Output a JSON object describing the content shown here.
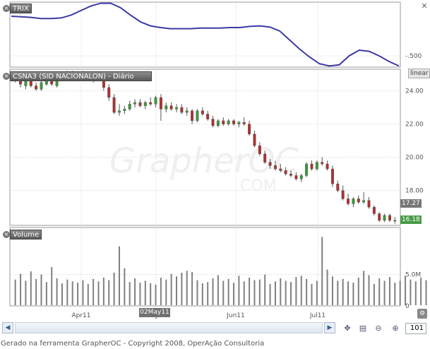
{
  "panels": {
    "trix": {
      "label": "TRIX"
    },
    "price": {
      "label": "CSNA3 (SID NACIONALON) - Diário",
      "scale_mode": "linear",
      "last_price": "17.27",
      "current_price": "16.18"
    },
    "volume": {
      "label": "Volume"
    }
  },
  "watermark": {
    "text": "GrapherOC",
    "subtext": "COM"
  },
  "crosshair_date": "02May11",
  "zoom_value": "101",
  "footer_text": "Gerado na ferramenta GrapherOC - Copyright 2008, OperAção Consultoria",
  "icons": [
    "close-icon",
    "scroll-left-icon",
    "scroll-right-icon",
    "pan-icon",
    "chart-icon",
    "zoom-out-icon",
    "zoom-in-icon",
    "settings-icon"
  ],
  "colors": {
    "trix_line": "#3a3aa8",
    "candle_up": "#3a9a3a",
    "candle_down": "#b03030",
    "volume_bar": "#808080",
    "current_price_bg": "#4a9a4a",
    "last_price_bg": "#777777"
  },
  "chart_data": [
    {
      "type": "line",
      "title": "TRIX",
      "x_tick_labels": [
        "Apr11",
        "May11",
        "Jun11",
        "Jul11"
      ],
      "y_ticks": [
        -0.5
      ],
      "ylim": [
        -0.7,
        0.45
      ],
      "values": [
        0.2,
        0.19,
        0.18,
        0.16,
        0.16,
        0.17,
        0.22,
        0.3,
        0.38,
        0.43,
        0.43,
        0.35,
        0.22,
        0.1,
        0.03,
        0.0,
        -0.02,
        -0.02,
        -0.02,
        -0.01,
        -0.01,
        -0.01,
        0.0,
        0.0,
        0.02,
        0.03,
        0.01,
        -0.06,
        -0.22,
        -0.38,
        -0.52,
        -0.64,
        -0.68,
        -0.66,
        -0.5,
        -0.4,
        -0.42,
        -0.5,
        -0.6,
        -0.68
      ]
    },
    {
      "type": "candlestick",
      "title": "CSNA3 (SID NACIONALON) - Diário",
      "x_tick_labels": [
        "Apr11",
        "May11",
        "Jun11",
        "Jul11"
      ],
      "y_ticks": [
        18.0,
        20.0,
        22.0,
        24.0
      ],
      "ylim": [
        15.9,
        25.3
      ],
      "annotations": [
        "17.27",
        "16.18"
      ],
      "candles": [
        {
          "o": 24.9,
          "h": 25.1,
          "l": 24.5,
          "c": 24.7
        },
        {
          "o": 24.6,
          "h": 24.9,
          "l": 24.2,
          "c": 24.4
        },
        {
          "o": 24.3,
          "h": 24.8,
          "l": 24.1,
          "c": 24.7
        },
        {
          "o": 24.6,
          "h": 24.9,
          "l": 24.2,
          "c": 24.3
        },
        {
          "o": 24.3,
          "h": 24.5,
          "l": 24.0,
          "c": 24.1
        },
        {
          "o": 24.1,
          "h": 24.8,
          "l": 24.0,
          "c": 24.5
        },
        {
          "o": 24.4,
          "h": 24.9,
          "l": 24.3,
          "c": 24.8
        },
        {
          "o": 24.7,
          "h": 24.9,
          "l": 24.3,
          "c": 24.4
        },
        {
          "o": 24.3,
          "h": 24.9,
          "l": 24.2,
          "c": 24.8
        },
        {
          "o": 24.8,
          "h": 25.1,
          "l": 24.6,
          "c": 24.9
        },
        {
          "o": 24.9,
          "h": 25.2,
          "l": 24.7,
          "c": 25.0
        },
        {
          "o": 25.0,
          "h": 25.2,
          "l": 24.8,
          "c": 24.9
        },
        {
          "o": 24.9,
          "h": 25.1,
          "l": 24.7,
          "c": 25.0
        },
        {
          "o": 25.0,
          "h": 25.2,
          "l": 24.8,
          "c": 24.9
        },
        {
          "o": 24.9,
          "h": 25.1,
          "l": 24.6,
          "c": 24.7
        },
        {
          "o": 24.8,
          "h": 25.0,
          "l": 24.5,
          "c": 24.9
        },
        {
          "o": 24.9,
          "h": 25.1,
          "l": 24.6,
          "c": 24.7
        },
        {
          "o": 24.7,
          "h": 24.9,
          "l": 24.0,
          "c": 24.2
        },
        {
          "o": 24.2,
          "h": 24.4,
          "l": 23.4,
          "c": 23.6
        },
        {
          "o": 23.6,
          "h": 23.8,
          "l": 22.6,
          "c": 22.7
        },
        {
          "o": 22.7,
          "h": 23.2,
          "l": 22.5,
          "c": 22.8
        },
        {
          "o": 22.8,
          "h": 23.1,
          "l": 22.6,
          "c": 22.9
        },
        {
          "o": 22.9,
          "h": 23.4,
          "l": 22.8,
          "c": 23.2
        },
        {
          "o": 23.2,
          "h": 23.5,
          "l": 23.0,
          "c": 23.3
        },
        {
          "o": 23.3,
          "h": 23.5,
          "l": 23.0,
          "c": 23.1
        },
        {
          "o": 23.1,
          "h": 23.4,
          "l": 22.9,
          "c": 23.3
        },
        {
          "o": 23.3,
          "h": 23.6,
          "l": 23.1,
          "c": 23.2
        },
        {
          "o": 23.2,
          "h": 23.7,
          "l": 23.0,
          "c": 23.6
        },
        {
          "o": 23.6,
          "h": 23.8,
          "l": 22.2,
          "c": 22.9
        },
        {
          "o": 22.9,
          "h": 23.3,
          "l": 22.7,
          "c": 23.1
        },
        {
          "o": 23.1,
          "h": 23.3,
          "l": 22.8,
          "c": 22.9
        },
        {
          "o": 22.9,
          "h": 23.2,
          "l": 22.7,
          "c": 23.0
        },
        {
          "o": 23.0,
          "h": 23.2,
          "l": 22.6,
          "c": 22.7
        },
        {
          "o": 22.7,
          "h": 23.0,
          "l": 22.5,
          "c": 22.8
        },
        {
          "o": 22.8,
          "h": 22.9,
          "l": 22.0,
          "c": 22.2
        },
        {
          "o": 22.2,
          "h": 22.9,
          "l": 22.1,
          "c": 22.8
        },
        {
          "o": 22.8,
          "h": 23.0,
          "l": 22.5,
          "c": 22.6
        },
        {
          "o": 22.6,
          "h": 22.8,
          "l": 22.2,
          "c": 22.3
        },
        {
          "o": 22.3,
          "h": 22.5,
          "l": 21.8,
          "c": 21.9
        },
        {
          "o": 21.9,
          "h": 22.3,
          "l": 21.8,
          "c": 22.2
        },
        {
          "o": 22.2,
          "h": 22.4,
          "l": 21.9,
          "c": 22.0
        },
        {
          "o": 22.0,
          "h": 22.3,
          "l": 21.9,
          "c": 22.2
        },
        {
          "o": 22.2,
          "h": 22.3,
          "l": 21.9,
          "c": 22.0
        },
        {
          "o": 22.0,
          "h": 22.2,
          "l": 21.8,
          "c": 22.1
        },
        {
          "o": 22.1,
          "h": 22.4,
          "l": 21.9,
          "c": 22.0
        },
        {
          "o": 22.0,
          "h": 22.2,
          "l": 21.3,
          "c": 21.4
        },
        {
          "o": 21.4,
          "h": 21.6,
          "l": 20.6,
          "c": 20.7
        },
        {
          "o": 20.7,
          "h": 20.9,
          "l": 20.1,
          "c": 20.2
        },
        {
          "o": 20.2,
          "h": 20.4,
          "l": 19.6,
          "c": 19.7
        },
        {
          "o": 19.7,
          "h": 19.9,
          "l": 19.3,
          "c": 19.5
        },
        {
          "o": 19.5,
          "h": 19.8,
          "l": 19.2,
          "c": 19.3
        },
        {
          "o": 19.3,
          "h": 19.6,
          "l": 19.1,
          "c": 19.2
        },
        {
          "o": 19.2,
          "h": 19.4,
          "l": 18.9,
          "c": 19.0
        },
        {
          "o": 19.0,
          "h": 19.2,
          "l": 18.8,
          "c": 18.9
        },
        {
          "o": 18.9,
          "h": 19.1,
          "l": 18.6,
          "c": 18.7
        },
        {
          "o": 18.7,
          "h": 19.0,
          "l": 18.5,
          "c": 18.9
        },
        {
          "o": 18.9,
          "h": 19.7,
          "l": 18.8,
          "c": 19.6
        },
        {
          "o": 19.6,
          "h": 19.8,
          "l": 19.2,
          "c": 19.3
        },
        {
          "o": 19.3,
          "h": 19.8,
          "l": 19.2,
          "c": 19.7
        },
        {
          "o": 19.7,
          "h": 20.0,
          "l": 19.5,
          "c": 19.6
        },
        {
          "o": 19.6,
          "h": 19.8,
          "l": 19.2,
          "c": 19.3
        },
        {
          "o": 19.3,
          "h": 19.5,
          "l": 18.2,
          "c": 18.4
        },
        {
          "o": 18.4,
          "h": 18.6,
          "l": 17.9,
          "c": 18.0
        },
        {
          "o": 18.0,
          "h": 18.3,
          "l": 17.4,
          "c": 17.5
        },
        {
          "o": 17.5,
          "h": 17.8,
          "l": 17.1,
          "c": 17.2
        },
        {
          "o": 17.2,
          "h": 17.6,
          "l": 17.0,
          "c": 17.5
        },
        {
          "o": 17.5,
          "h": 17.7,
          "l": 17.2,
          "c": 17.3
        },
        {
          "o": 17.3,
          "h": 17.9,
          "l": 17.2,
          "c": 17.4
        },
        {
          "o": 17.4,
          "h": 17.6,
          "l": 16.9,
          "c": 17.0
        },
        {
          "o": 17.0,
          "h": 17.1,
          "l": 16.5,
          "c": 16.6
        },
        {
          "o": 16.6,
          "h": 16.7,
          "l": 16.1,
          "c": 16.2
        },
        {
          "o": 16.2,
          "h": 16.6,
          "l": 16.1,
          "c": 16.5
        },
        {
          "o": 16.5,
          "h": 16.6,
          "l": 16.1,
          "c": 16.2
        },
        {
          "o": 16.2,
          "h": 16.4,
          "l": 16.0,
          "c": 16.18
        }
      ]
    },
    {
      "type": "bar",
      "title": "Volume",
      "x_tick_labels": [
        "Apr11",
        "May11",
        "Jun11",
        "Jul11"
      ],
      "y_ticks": [
        0,
        5.0
      ],
      "y_tick_labels": [
        "0",
        "5.0M"
      ],
      "ylim": [
        0,
        12.5
      ],
      "values": [
        4.2,
        5.1,
        4.0,
        5.5,
        4.3,
        5.0,
        3.8,
        6.2,
        4.4,
        3.6,
        4.2,
        3.9,
        3.7,
        4.1,
        3.5,
        4.3,
        3.9,
        4.5,
        4.1,
        5.3,
        9.5,
        6.0,
        3.8,
        4.4,
        3.7,
        4.0,
        3.6,
        3.4,
        4.5,
        4.2,
        5.1,
        4.7,
        5.3,
        5.6,
        5.4,
        4.1,
        3.6,
        3.8,
        4.4,
        4.9,
        4.0,
        4.3,
        3.7,
        4.8,
        3.9,
        4.5,
        4.1,
        4.2,
        5.0,
        3.5,
        3.9,
        4.4,
        4.0,
        3.8,
        4.6,
        4.8,
        4.3,
        3.5,
        4.0,
        11.0,
        5.8,
        4.7,
        4.0,
        4.3,
        3.9,
        3.7,
        4.5,
        5.6,
        4.9,
        3.5,
        4.4,
        4.0,
        4.6,
        3.7,
        4.0,
        4.8,
        4.2,
        3.9,
        4.5,
        4.1,
        4.4,
        4.7,
        4.2,
        4.6,
        3.6,
        4.3
      ]
    }
  ]
}
